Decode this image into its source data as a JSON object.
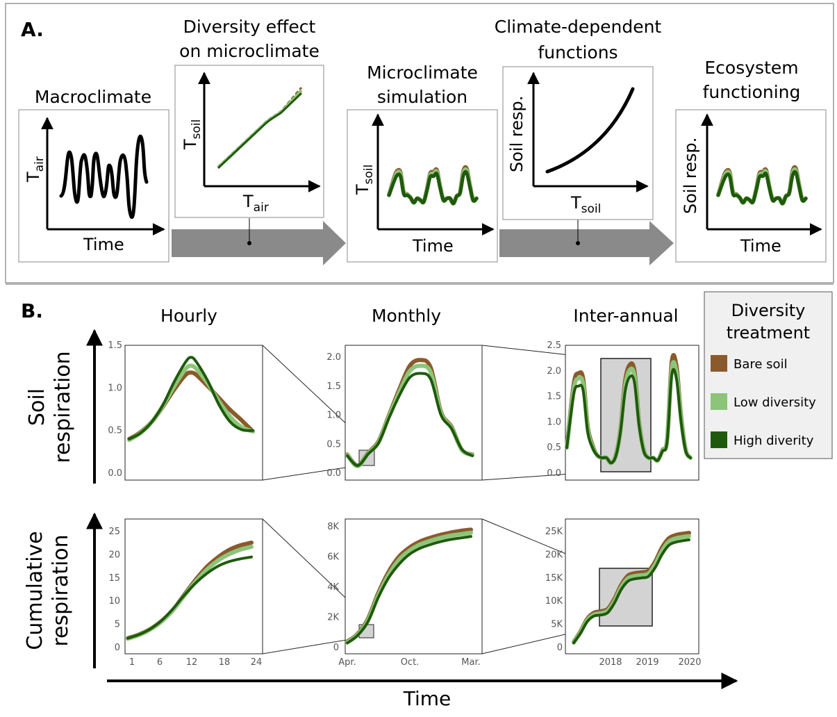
{
  "colors": {
    "bare": "#8b5a2b",
    "low": "#8cc57a",
    "high": "#1f5a0c",
    "arrow": "#8a8a8a",
    "zoom": "#d3d3d3"
  },
  "panelA": {
    "label": "A.",
    "boxes": [
      {
        "title_lines": [
          "Macroclimate"
        ],
        "ylabel": "T",
        "ylabel_sub": "air",
        "xlabel": "Time"
      },
      {
        "title_lines": [
          "Diversity effect",
          "on microclimate"
        ],
        "ylabel": "T",
        "ylabel_sub": "soil",
        "xlabel": "T",
        "xlabel_sub": "air"
      },
      {
        "title_lines": [
          "Microclimate",
          "simulation"
        ],
        "ylabel": "T",
        "ylabel_sub": "soil",
        "xlabel": "Time"
      },
      {
        "title_lines": [
          "Climate-dependent",
          "functions"
        ],
        "ylabel": "Soil resp.",
        "xlabel": "T",
        "xlabel_sub": "soil"
      },
      {
        "title_lines": [
          "Ecosystem",
          "functioning"
        ],
        "ylabel": "Soil resp.",
        "xlabel": "Time"
      }
    ]
  },
  "panelB": {
    "label": "B.",
    "columns": [
      "Hourly",
      "Monthly",
      "Inter-annual"
    ],
    "row_labels": [
      [
        "Soil",
        "respiration"
      ],
      [
        "Cumulative",
        "respiration"
      ]
    ],
    "xlabel": "Time",
    "legend": {
      "title_lines": [
        "Diversity",
        "treatment"
      ],
      "items": [
        {
          "label": "Bare soil",
          "color": "#8b5a2b"
        },
        {
          "label": "Low diversity",
          "color": "#8cc57a"
        },
        {
          "label": "High diverity",
          "color": "#1f5a0c"
        }
      ]
    }
  },
  "chart_data": [
    {
      "type": "line",
      "panel": "hourly-soil-respiration",
      "ylim": [
        0,
        1.5
      ],
      "yticks": [
        "0.0",
        "0.5",
        "1.0",
        "1.5"
      ],
      "x": [
        1,
        3,
        5,
        7,
        9,
        11,
        12,
        13,
        15,
        17,
        19,
        21,
        23
      ],
      "series": [
        {
          "name": "Bare soil",
          "values": [
            0.4,
            0.48,
            0.6,
            0.78,
            0.98,
            1.15,
            1.18,
            1.15,
            1.02,
            0.88,
            0.74,
            0.62,
            0.49
          ]
        },
        {
          "name": "Low diversity",
          "values": [
            0.39,
            0.47,
            0.6,
            0.79,
            1.02,
            1.22,
            1.26,
            1.22,
            1.05,
            0.84,
            0.66,
            0.54,
            0.49
          ]
        },
        {
          "name": "High diverity",
          "values": [
            0.4,
            0.47,
            0.6,
            0.8,
            1.07,
            1.3,
            1.36,
            1.3,
            1.08,
            0.8,
            0.6,
            0.51,
            0.5
          ]
        }
      ]
    },
    {
      "type": "line",
      "panel": "monthly-soil-respiration",
      "ylim": [
        0,
        2.0
      ],
      "yticks": [
        "0.0",
        "0.5",
        "1.0",
        "1.5",
        "2.0"
      ],
      "x": [
        0,
        1,
        2,
        3,
        4,
        5,
        6,
        7,
        8,
        9,
        10,
        11,
        12
      ],
      "series": [
        {
          "name": "Bare soil",
          "values": [
            0.32,
            0.13,
            0.35,
            0.55,
            1.0,
            1.45,
            1.85,
            1.95,
            1.82,
            1.05,
            0.8,
            0.4,
            0.32
          ]
        },
        {
          "name": "Low diversity",
          "values": [
            0.31,
            0.12,
            0.34,
            0.53,
            0.98,
            1.4,
            1.76,
            1.85,
            1.74,
            1.03,
            0.78,
            0.4,
            0.31
          ]
        },
        {
          "name": "High diverity",
          "values": [
            0.3,
            0.13,
            0.33,
            0.52,
            0.95,
            1.34,
            1.65,
            1.72,
            1.62,
            1.0,
            0.77,
            0.41,
            0.3
          ]
        }
      ]
    },
    {
      "type": "line",
      "panel": "inter-annual-soil-respiration",
      "ylim": [
        0,
        2.5
      ],
      "yticks": [
        "0.0",
        "0.5",
        "1.0",
        "1.5",
        "2.0",
        "2.5"
      ],
      "x": [
        0,
        0.6,
        1.0,
        1.4,
        1.8,
        2.2,
        2.6,
        3.0,
        3.4,
        3.8,
        4.2,
        4.6,
        5.0,
        5.4,
        5.8,
        6.2,
        6.6,
        7.0,
        7.4,
        7.8,
        8.2,
        8.6,
        9.0,
        9.4,
        9.8,
        10.2,
        10.6
      ],
      "series": [
        {
          "name": "Bare soil",
          "values": [
            0.5,
            1.75,
            1.95,
            1.85,
            0.9,
            0.55,
            0.35,
            0.3,
            0.3,
            0.2,
            0.35,
            0.85,
            1.8,
            2.12,
            2.0,
            1.0,
            0.45,
            0.3,
            0.3,
            0.25,
            0.45,
            0.65,
            2.18,
            2.1,
            1.1,
            0.45,
            0.3
          ]
        },
        {
          "name": "Low diversity",
          "values": [
            0.5,
            1.65,
            1.85,
            1.75,
            0.85,
            0.52,
            0.35,
            0.3,
            0.3,
            0.2,
            0.34,
            0.82,
            1.7,
            2.02,
            1.9,
            0.97,
            0.44,
            0.3,
            0.3,
            0.25,
            0.44,
            0.63,
            2.05,
            1.98,
            1.05,
            0.44,
            0.3
          ]
        },
        {
          "name": "High diverity",
          "values": [
            0.5,
            1.55,
            1.7,
            1.62,
            0.8,
            0.5,
            0.35,
            0.3,
            0.3,
            0.2,
            0.33,
            0.8,
            1.6,
            1.88,
            1.78,
            0.93,
            0.43,
            0.3,
            0.3,
            0.25,
            0.43,
            0.61,
            1.92,
            1.85,
            1.0,
            0.43,
            0.3
          ]
        }
      ]
    },
    {
      "type": "line",
      "panel": "hourly-cumulative-respiration",
      "ylim": [
        0,
        25
      ],
      "yticks": [
        "0",
        "5",
        "10",
        "15",
        "20",
        "25"
      ],
      "xticks": [
        "1",
        "6",
        "12",
        "18",
        "24"
      ],
      "x": [
        1,
        3,
        5,
        7,
        9,
        11,
        13,
        15,
        17,
        19,
        21,
        23
      ],
      "series": [
        {
          "name": "Bare soil",
          "values": [
            2.0,
            2.8,
            4.0,
            5.7,
            8.0,
            11.3,
            14.5,
            17.3,
            19.4,
            21.0,
            22.0,
            22.6
          ]
        },
        {
          "name": "Low diversity",
          "values": [
            1.9,
            2.7,
            3.9,
            5.6,
            8.0,
            11.1,
            14.1,
            16.7,
            18.7,
            20.1,
            21.1,
            21.7
          ]
        },
        {
          "name": "High diverity",
          "values": [
            2.0,
            2.8,
            4.0,
            5.8,
            8.3,
            11.2,
            13.8,
            15.9,
            17.5,
            18.5,
            19.1,
            19.5
          ]
        }
      ]
    },
    {
      "type": "line",
      "panel": "monthly-cumulative-respiration",
      "ylim": [
        0,
        8000
      ],
      "yticks": [
        "0",
        "2K",
        "4K",
        "6K",
        "8K"
      ],
      "xticks": [
        "Apr.",
        "Oct.",
        "Mar."
      ],
      "x": [
        0,
        1,
        2,
        3,
        4,
        5,
        6,
        7,
        8,
        9,
        10,
        11,
        12
      ],
      "series": [
        {
          "name": "Bare soil",
          "values": [
            400,
            900,
            1900,
            3600,
            5000,
            6000,
            6600,
            7000,
            7250,
            7450,
            7600,
            7720,
            7800
          ]
        },
        {
          "name": "Low diversity",
          "values": [
            350,
            850,
            1800,
            3450,
            4800,
            5800,
            6400,
            6800,
            7050,
            7250,
            7400,
            7500,
            7600
          ]
        },
        {
          "name": "High diverity",
          "values": [
            300,
            800,
            1700,
            3300,
            4600,
            5500,
            6150,
            6550,
            6800,
            7000,
            7150,
            7250,
            7350
          ]
        }
      ]
    },
    {
      "type": "line",
      "panel": "inter-annual-cumulative-respiration",
      "ylim": [
        0,
        25000
      ],
      "yticks": [
        "0",
        "5K",
        "10K",
        "15K",
        "20K",
        "25K"
      ],
      "xticks": [
        "2018",
        "2019",
        "2020"
      ],
      "x": [
        0,
        0.6,
        1.2,
        1.8,
        2.4,
        3.0,
        3.6,
        4.2,
        4.8,
        5.4,
        6.0,
        6.6,
        7.2,
        7.8,
        8.4,
        9.0,
        9.6,
        10.2
      ],
      "series": [
        {
          "name": "Bare soil",
          "values": [
            1200,
            3500,
            6200,
            7500,
            7800,
            8300,
            10500,
            13500,
            15500,
            16000,
            16200,
            16500,
            18500,
            21500,
            23500,
            24200,
            24500,
            24700
          ]
        },
        {
          "name": "Low diversity",
          "values": [
            1100,
            3300,
            5900,
            7100,
            7400,
            7900,
            10000,
            13000,
            14900,
            15400,
            15600,
            15900,
            17900,
            20800,
            22800,
            23500,
            23800,
            24000
          ]
        },
        {
          "name": "High diverity",
          "values": [
            1000,
            3100,
            5600,
            6800,
            7000,
            7500,
            9600,
            12500,
            14300,
            14800,
            15000,
            15300,
            17200,
            20000,
            22000,
            22700,
            23000,
            23200
          ]
        }
      ]
    }
  ]
}
